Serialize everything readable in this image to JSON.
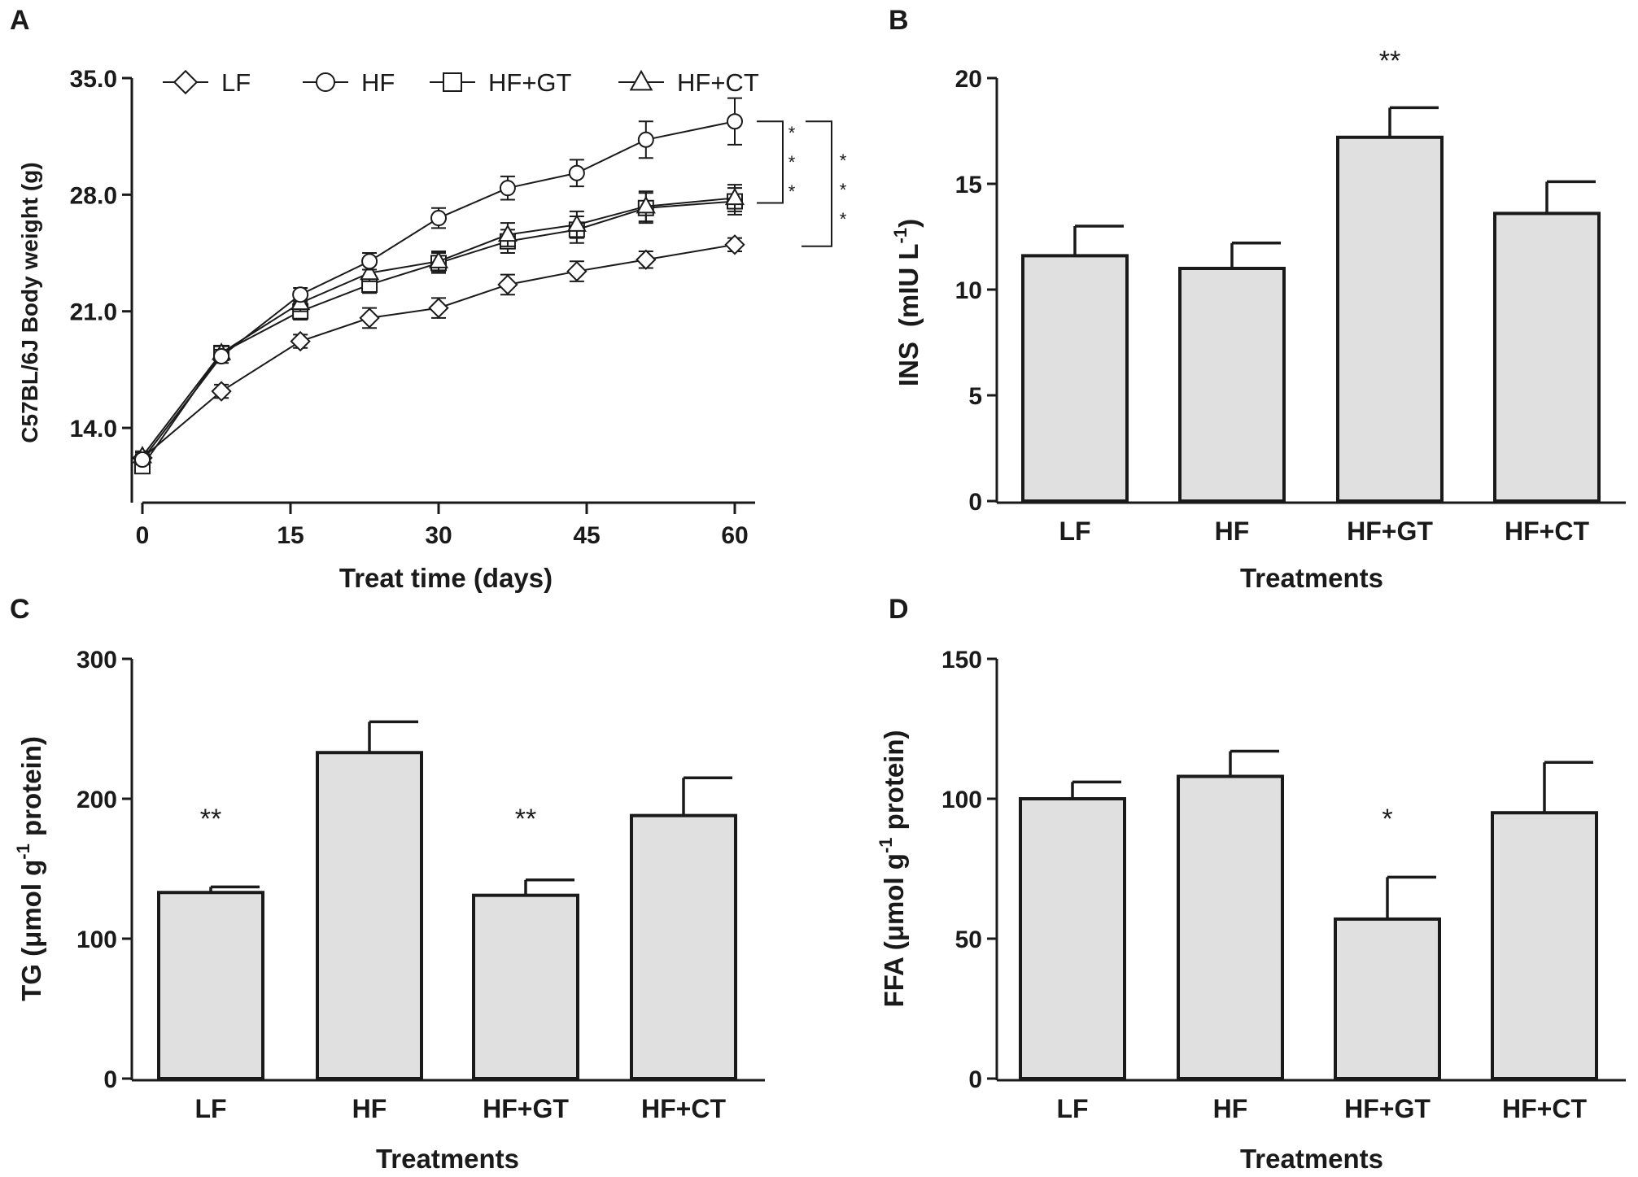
{
  "chart_data": [
    {
      "panel": "A",
      "type": "line",
      "xlabel": "Treat time (days)",
      "ylabel": "C57BL/6J Body weight (g)",
      "xlim": [
        0,
        60
      ],
      "ylim": [
        10.0,
        35.0
      ],
      "xticks": [
        "0",
        "15",
        "30",
        "45",
        "60"
      ],
      "yticks": [
        "14.0",
        "21.0",
        "28.0",
        "35.0"
      ],
      "x": [
        0,
        8,
        16,
        23,
        30,
        37,
        44,
        51,
        60
      ],
      "legend": [
        "LF",
        "HF",
        "HF+GT",
        "HF+CT"
      ],
      "series": [
        {
          "name": "LF",
          "marker": "diamond",
          "values": [
            12.2,
            16.2,
            19.2,
            20.6,
            21.2,
            22.6,
            23.4,
            24.1,
            25.0
          ],
          "errors": [
            0.3,
            0.4,
            0.4,
            0.6,
            0.6,
            0.6,
            0.6,
            0.5,
            0.4
          ]
        },
        {
          "name": "HF",
          "marker": "circle",
          "values": [
            12.1,
            18.3,
            22.0,
            24.0,
            26.6,
            28.4,
            29.3,
            31.3,
            32.4
          ],
          "errors": [
            0.3,
            0.4,
            0.4,
            0.5,
            0.6,
            0.7,
            0.8,
            1.1,
            1.4
          ]
        },
        {
          "name": "HF+GT",
          "marker": "square",
          "values": [
            11.7,
            18.5,
            21.0,
            22.6,
            23.9,
            25.2,
            25.9,
            27.2,
            27.6
          ],
          "errors": [
            0.3,
            0.4,
            0.5,
            0.5,
            0.6,
            0.7,
            0.8,
            0.9,
            0.8
          ]
        },
        {
          "name": "HF+CT",
          "marker": "triangle",
          "values": [
            12.3,
            18.5,
            21.5,
            23.3,
            24.0,
            25.6,
            26.2,
            27.3,
            27.8
          ],
          "errors": [
            0.3,
            0.4,
            0.5,
            0.5,
            0.6,
            0.7,
            0.8,
            0.9,
            0.8
          ]
        }
      ],
      "significance": [
        "*",
        "*",
        "*",
        "*",
        "*",
        "*"
      ]
    },
    {
      "panel": "B",
      "type": "bar",
      "xlabel": "Treatments",
      "ylabel": "INS",
      "ylabel_unit": "(mIU L",
      "ylabel_exp": "-1",
      "ylabel_close": ")",
      "ylim": [
        0,
        20
      ],
      "yticks": [
        "0",
        "5",
        "10",
        "15",
        "20"
      ],
      "categories": [
        "LF",
        "HF",
        "HF+GT",
        "HF+CT"
      ],
      "values": [
        11.6,
        11.0,
        17.2,
        13.6
      ],
      "errors": [
        1.4,
        1.2,
        1.4,
        1.5
      ],
      "annotations": [
        "",
        "",
        "**",
        ""
      ]
    },
    {
      "panel": "C",
      "type": "bar",
      "xlabel": "Treatments",
      "ylabel": "TG (μmol g",
      "ylabel_exp": "-1",
      "ylabel_close": " protein)",
      "ylim": [
        0,
        300
      ],
      "yticks": [
        "0",
        "100",
        "200",
        "300"
      ],
      "categories": [
        "LF",
        "HF",
        "HF+GT",
        "HF+CT"
      ],
      "values": [
        133,
        233,
        131,
        188
      ],
      "errors": [
        4,
        22,
        11,
        27
      ],
      "annotations": [
        "**",
        "",
        "**",
        ""
      ]
    },
    {
      "panel": "D",
      "type": "bar",
      "xlabel": "Treatments",
      "ylabel": "FFA (μmol g",
      "ylabel_exp": "-1",
      "ylabel_close": " protein)",
      "ylim": [
        0,
        150
      ],
      "yticks": [
        "0",
        "50",
        "100",
        "150"
      ],
      "categories": [
        "LF",
        "HF",
        "HF+GT",
        "HF+CT"
      ],
      "values": [
        100,
        108,
        57,
        95
      ],
      "errors": [
        6,
        9,
        15,
        18
      ],
      "annotations": [
        "",
        "",
        "*",
        ""
      ]
    }
  ]
}
